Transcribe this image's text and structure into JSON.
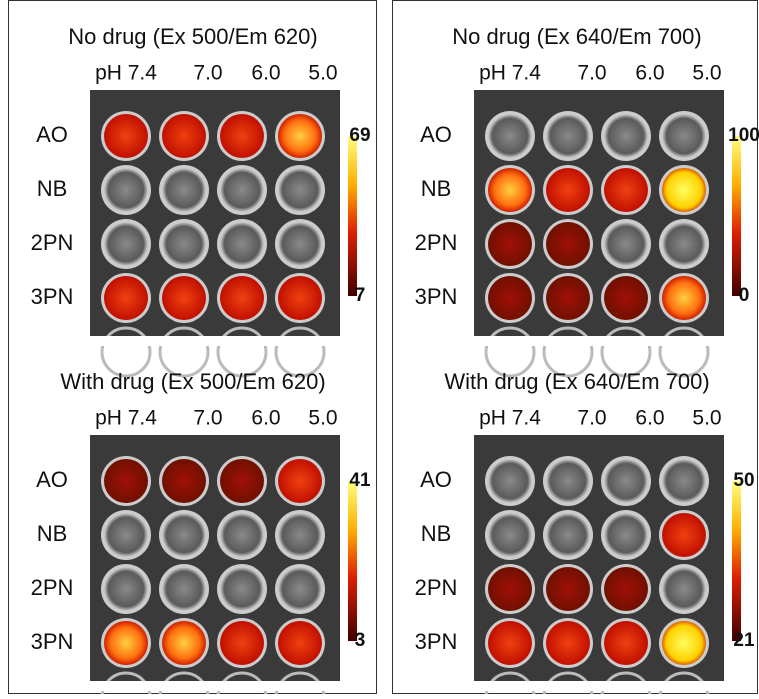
{
  "panels": [
    {
      "title": "No drug (Ex 500/Em 620)",
      "ph_labels": [
        "pH 7.4",
        "7.0",
        "6.0",
        "5.0"
      ],
      "row_labels": [
        "AO",
        "NB",
        "2PN",
        "3PN"
      ],
      "scale_max": 69,
      "scale_min": 7
    },
    {
      "title": "No drug (Ex 640/Em 700)",
      "ph_labels": [
        "pH 7.4",
        "7.0",
        "6.0",
        "5.0"
      ],
      "row_labels": [
        "AO",
        "NB",
        "2PN",
        "3PN"
      ],
      "scale_max": 100,
      "scale_min": 0
    },
    {
      "title": "With drug (Ex 500/Em 620)",
      "ph_labels": [
        "pH 7.4",
        "7.0",
        "6.0",
        "5.0"
      ],
      "row_labels": [
        "AO",
        "NB",
        "2PN",
        "3PN"
      ],
      "scale_max": 41,
      "scale_min": 3
    },
    {
      "title": "With drug (Ex 640/Em 700)",
      "ph_labels": [
        "pH 7.4",
        "7.0",
        "6.0",
        "5.0"
      ],
      "row_labels": [
        "AO",
        "NB",
        "2PN",
        "3PN"
      ],
      "scale_max": 50,
      "scale_min": 21
    }
  ]
}
